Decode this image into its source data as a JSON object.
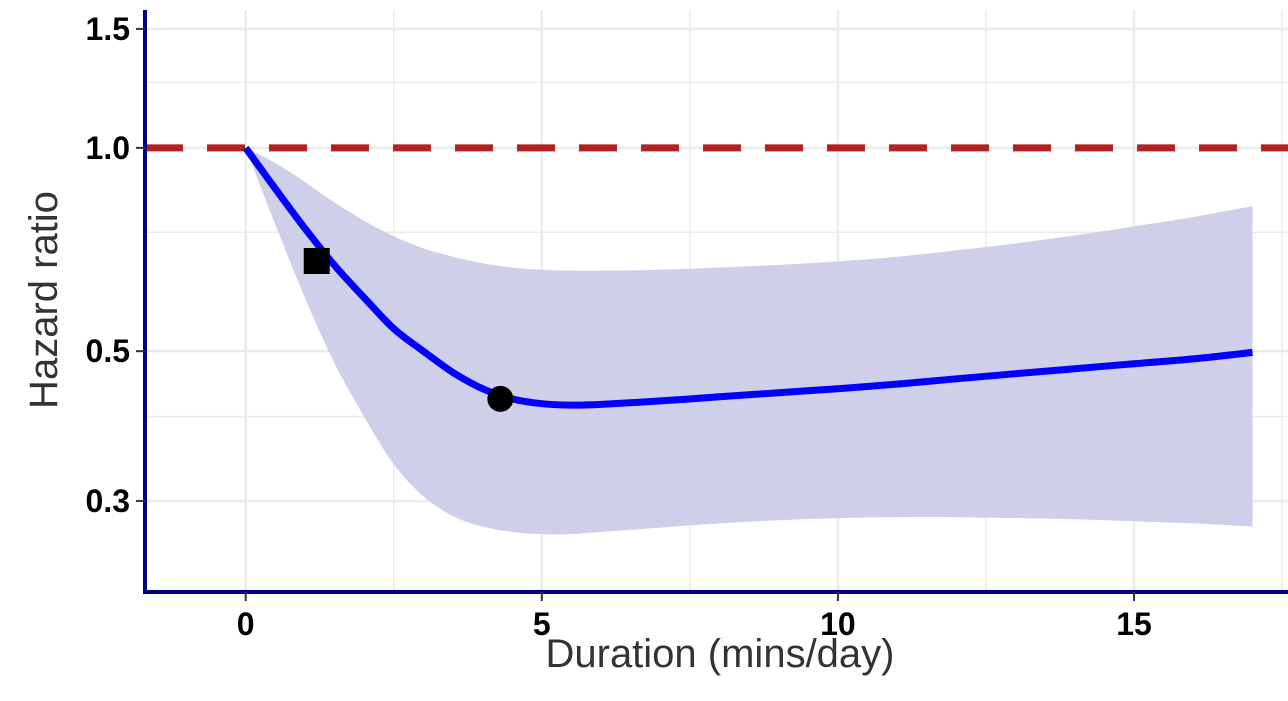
{
  "chart_data": {
    "type": "line",
    "title": "",
    "xlabel": "Duration (mins/day)",
    "ylabel": "Hazard ratio",
    "xlim": [
      -1.7,
      17.6
    ],
    "ylim": [
      0.22,
      1.6
    ],
    "y_scale": "log",
    "x_ticks": [
      0,
      5,
      10,
      15
    ],
    "x_tick_labels": [
      "0",
      "5",
      "10",
      "15"
    ],
    "x_minor_ticks": [
      2.5,
      7.5,
      12.5,
      17.5
    ],
    "y_ticks": [
      0.3,
      0.5,
      1.0,
      1.5
    ],
    "y_tick_labels": [
      "0.3",
      "0.5",
      "1.0",
      "1.5"
    ],
    "y_minor_ticks": [
      0.4,
      0.75,
      1.25
    ],
    "grid": true,
    "legend": "none",
    "reference_line": {
      "y": 1.0,
      "style": "dashed",
      "color": "#b22222"
    },
    "series": [
      {
        "x": [
          0,
          0.5,
          1,
          1.5,
          2,
          2.5,
          3,
          3.5,
          4,
          4.5,
          5,
          5.5,
          6,
          7,
          8,
          9,
          10,
          11,
          12,
          13,
          14,
          15,
          16,
          17
        ],
        "y": [
          1.0,
          0.87,
          0.76,
          0.67,
          0.6,
          0.54,
          0.5,
          0.465,
          0.44,
          0.425,
          0.418,
          0.416,
          0.417,
          0.422,
          0.428,
          0.434,
          0.44,
          0.447,
          0.455,
          0.463,
          0.471,
          0.479,
          0.487,
          0.498
        ],
        "lower": [
          1.0,
          0.77,
          0.6,
          0.48,
          0.4,
          0.34,
          0.305,
          0.285,
          0.275,
          0.27,
          0.268,
          0.268,
          0.27,
          0.274,
          0.278,
          0.281,
          0.283,
          0.284,
          0.284,
          0.283,
          0.282,
          0.28,
          0.278,
          0.275
        ],
        "upper": [
          1.0,
          0.95,
          0.89,
          0.83,
          0.78,
          0.74,
          0.71,
          0.69,
          0.675,
          0.665,
          0.66,
          0.658,
          0.658,
          0.66,
          0.665,
          0.671,
          0.679,
          0.69,
          0.705,
          0.722,
          0.742,
          0.765,
          0.79,
          0.82
        ],
        "line_color": "#0000ff",
        "band_color": "#cfcfea"
      }
    ],
    "markers": [
      {
        "shape": "square",
        "x": 1.2,
        "y": 0.68
      },
      {
        "shape": "circle",
        "x": 4.3,
        "y": 0.425
      }
    ],
    "axis_color": "#00008b",
    "grid_color": "#ebebeb"
  }
}
